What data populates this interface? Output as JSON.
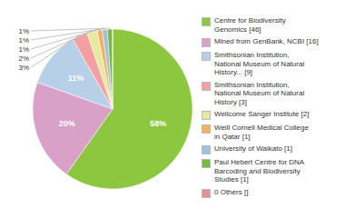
{
  "chart_data": {
    "type": "pie",
    "categories": [
      "Centre for Biodiversity\nGenomics [46]",
      "Mined from GenBank, NCBI [16]",
      "Smithsonian Institution,\nNational Museum of Natural\nHistory... [9]",
      "Smithsonian Institution,\nNational Museum of Natural\nHistory [3]",
      "Wellcome Sanger Institute [2]",
      "Weill Cornell Medical College\nin Qatar [1]",
      "University of Waikato [1]",
      "Paul Hebert Centre for DNA\nBarcoding and Biodiversity\nStudies [1]",
      "0 Others []"
    ],
    "values": [
      58,
      20,
      11,
      3,
      2,
      1,
      1,
      1,
      0.0001
    ],
    "value_labels": [
      "58%",
      "20%",
      "11%",
      "3%",
      "2%",
      "1%",
      "1%",
      "1%",
      null
    ],
    "colors": [
      "#8dc63f",
      "#d9a0c8",
      "#b8cfe8",
      "#f4a0a0",
      "#e8e8a0",
      "#f4b060",
      "#a0c0e0",
      "#7ab840",
      "#e89090"
    ],
    "data_labels": true,
    "legend": "right"
  }
}
